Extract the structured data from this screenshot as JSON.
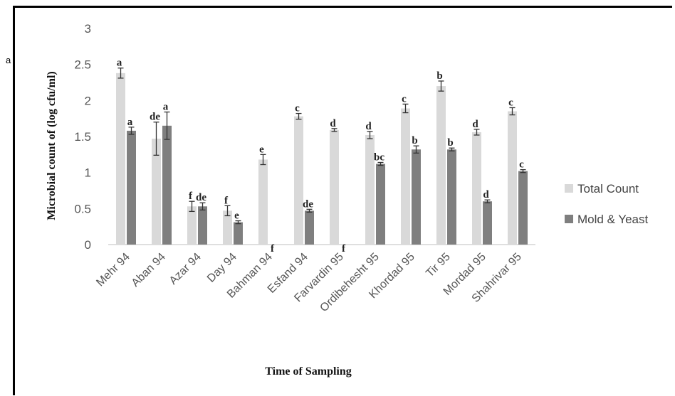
{
  "stray_label": "a",
  "chart_data": {
    "type": "bar",
    "xlabel": "Time of Sampling",
    "ylabel": "Microbial count of (log cfu/ml)",
    "ylim": [
      0,
      3
    ],
    "yticks": [
      "0",
      "0.5",
      "1",
      "1.5",
      "2",
      "2.5",
      "3"
    ],
    "grid": false,
    "legend_position": "right",
    "categories": [
      "Mehr 94",
      "Aban 94",
      "Azar 94",
      "Day 94",
      "Bahman 94",
      "Esfand 94",
      "Farvardin 95",
      "Ordibehesht 95",
      "Khordad 95",
      "Tir 95",
      "Mordad 95",
      "Shahrivar 95"
    ],
    "series": [
      {
        "name": "Total Count",
        "color": "#d9d9d9",
        "values": [
          2.38,
          1.47,
          0.53,
          0.47,
          1.18,
          1.78,
          1.59,
          1.52,
          1.89,
          2.2,
          1.56,
          1.85
        ],
        "errors": [
          0.07,
          0.23,
          0.07,
          0.07,
          0.07,
          0.04,
          0.02,
          0.05,
          0.06,
          0.07,
          0.04,
          0.05
        ],
        "letters": [
          "a",
          "de",
          "f",
          "f",
          "e",
          "c",
          "d",
          "d",
          "c",
          "b",
          "d",
          "c"
        ]
      },
      {
        "name": "Mold & Yeast",
        "color": "#7f7f7f",
        "values": [
          1.58,
          1.65,
          0.53,
          0.31,
          0,
          0.47,
          0,
          1.12,
          1.32,
          1.32,
          0.6,
          1.02
        ],
        "errors": [
          0.05,
          0.19,
          0.05,
          0.02,
          0,
          0.02,
          0,
          0.02,
          0.05,
          0.02,
          0.02,
          0.02
        ],
        "letters": [
          "a",
          "a",
          "de",
          "e",
          "f",
          "de",
          "f",
          "bc",
          "b",
          "b",
          "d",
          "c"
        ]
      }
    ]
  }
}
